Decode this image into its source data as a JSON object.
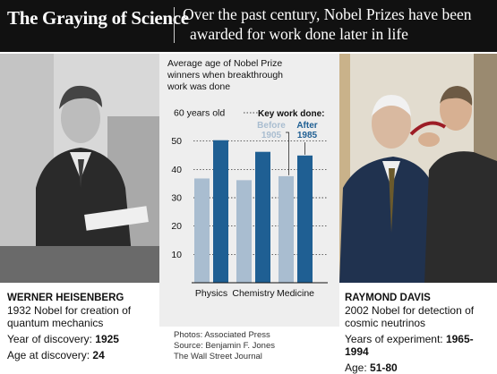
{
  "header": {
    "headline": "The Graying of Science",
    "dek_line1": "Over the past century, Nobel Prizes have been",
    "dek_line2": "awarded for work done later in life"
  },
  "left_caption": {
    "name": "WERNER HEISENBERG",
    "desc_line1": "1932 Nobel for creation of",
    "desc_line2": "quantum mechanics",
    "stat1_label": "Year of discovery: ",
    "stat1_value": "1925",
    "stat2_label": "Age at discovery: ",
    "stat2_value": "24"
  },
  "right_caption": {
    "name": "RAYMOND DAVIS",
    "desc_line1": "2002 Nobel for detection of",
    "desc_line2": "cosmic neutrinos",
    "stat1_label": "Years of experiment: ",
    "stat1_value": "1965-1994",
    "stat2_label": "Age: ",
    "stat2_value": "51-80"
  },
  "credits": {
    "line1": "Photos: Associated Press",
    "line2": "Source: Benjamin F. Jones",
    "line3": "The Wall Street Journal"
  },
  "chart_data": {
    "type": "bar",
    "title_lines": [
      "Average age of Nobel Prize",
      "winners when breakthrough",
      "work was done"
    ],
    "categories": [
      "Physics",
      "Chemistry",
      "Medicine"
    ],
    "series": [
      {
        "name": "Before 1905",
        "name_lines": [
          "Before",
          "1905"
        ],
        "color": "#a9bdd0",
        "values": [
          36.8,
          36.2,
          37.6
        ]
      },
      {
        "name": "After 1985",
        "name_lines": [
          "After",
          "1985"
        ],
        "color": "#1f5f93",
        "values": [
          50.3,
          46.2,
          44.9
        ]
      }
    ],
    "legend_title": "Key work done:",
    "yticks": [
      10,
      20,
      30,
      40,
      50,
      60
    ],
    "top_tick_label": "60 years old",
    "ylim": [
      0,
      60
    ],
    "grid": true
  }
}
